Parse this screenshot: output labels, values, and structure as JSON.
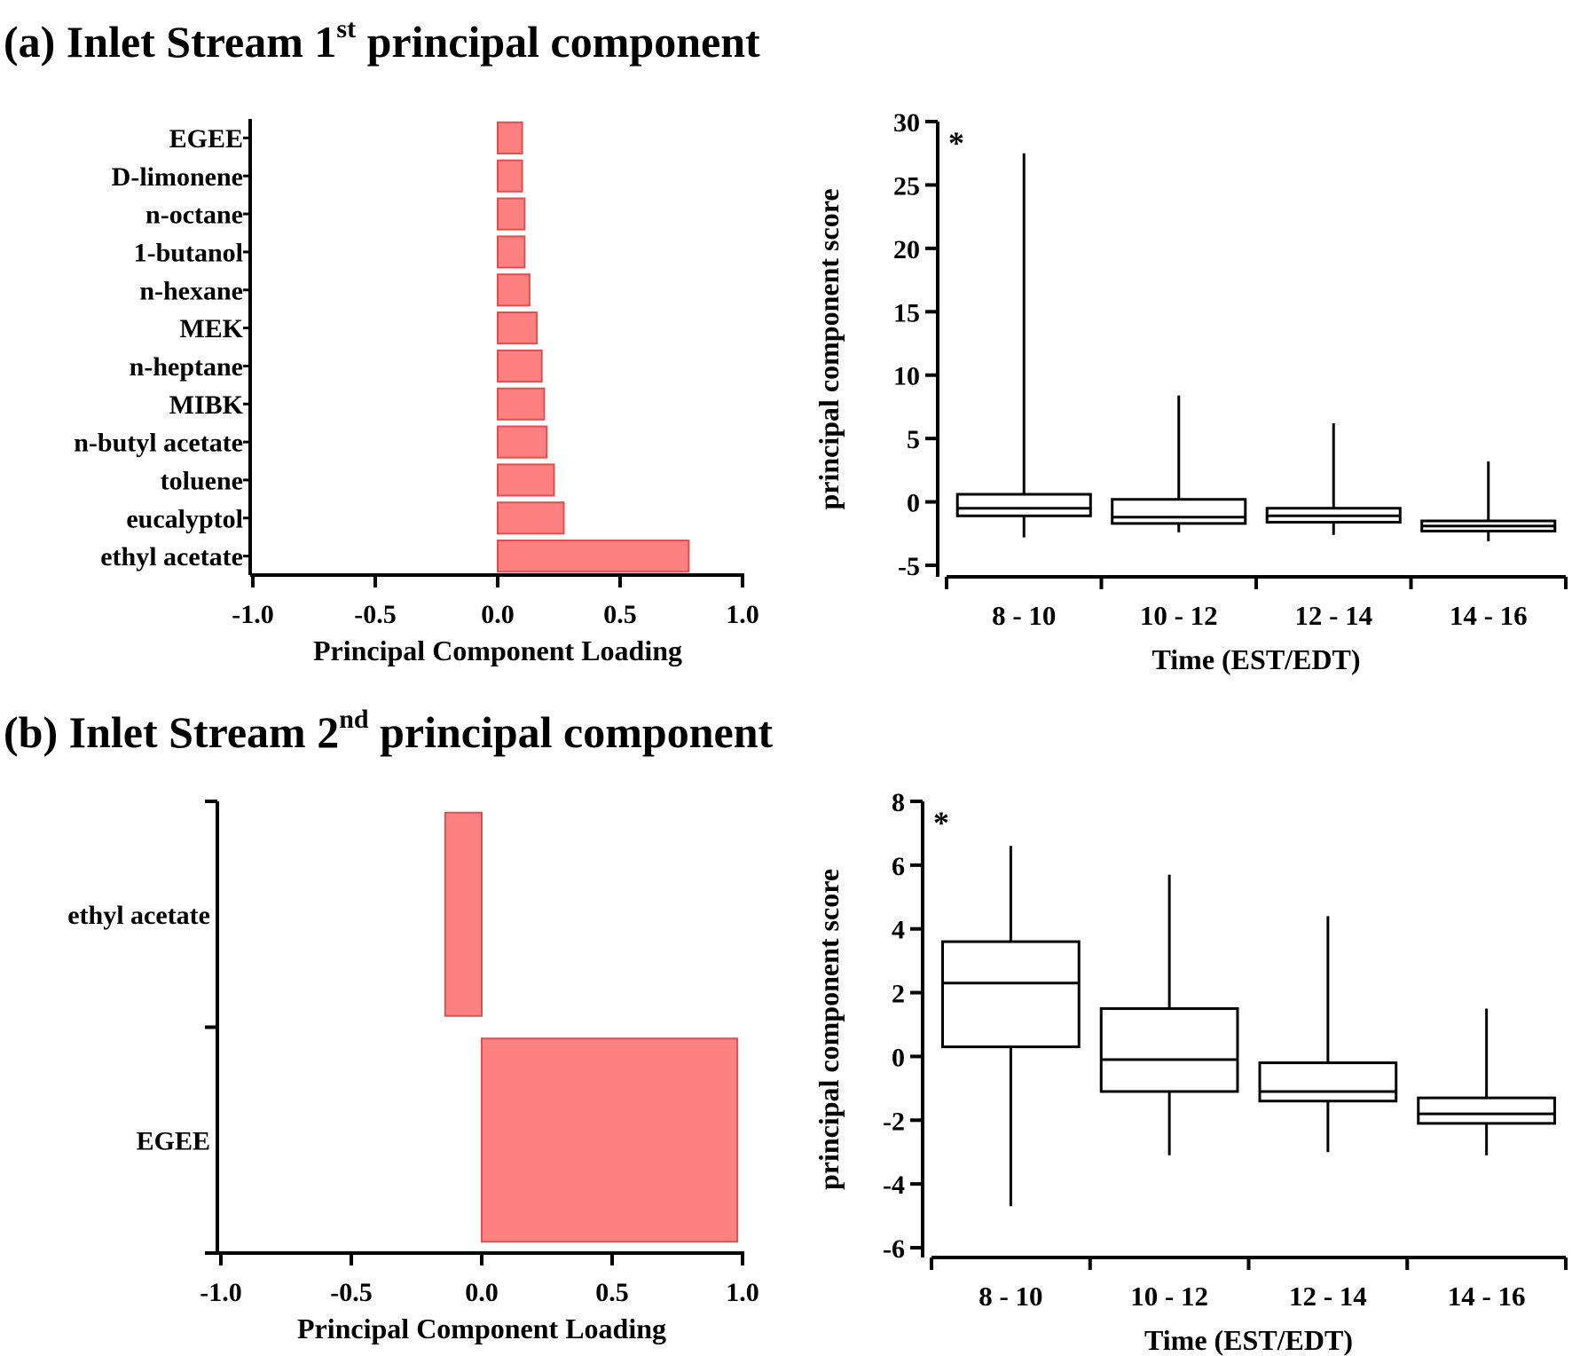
{
  "panels": [
    {
      "title_main": "(a) Inlet Stream 1",
      "title_sup": "st",
      "title_rest": " principal component"
    },
    {
      "title_main": "(b) Inlet Stream 2",
      "title_sup": "nd",
      "title_rest": " principal component"
    }
  ],
  "colors": {
    "bar_fill": "#ff8080",
    "bar_stroke": "#e05050",
    "axis": "#000000"
  },
  "chart_data": [
    {
      "id": "a-loadings",
      "type": "bar",
      "orientation": "horizontal",
      "categories": [
        "EGEE",
        "D-limonene",
        "n-octane",
        "1-butanol",
        "n-hexane",
        "MEK",
        "n-heptane",
        "MIBK",
        "n-butyl acetate",
        "toluene",
        "eucalyptol",
        "ethyl acetate"
      ],
      "values": [
        0.1,
        0.1,
        0.11,
        0.11,
        0.13,
        0.16,
        0.18,
        0.19,
        0.2,
        0.23,
        0.27,
        0.78
      ],
      "xlabel": "Principal Component Loading",
      "xlim": [
        -1.0,
        1.0
      ],
      "xticks": [
        "-1.0",
        "-0.5",
        "0.0",
        "0.5",
        "1.0"
      ]
    },
    {
      "id": "a-scores",
      "type": "box",
      "categories": [
        "8 - 10",
        "10 - 12",
        "12 - 14",
        "14 - 16"
      ],
      "boxes": [
        {
          "min": -2.8,
          "q1": -1.1,
          "median": -0.5,
          "q3": 0.6,
          "max": 27.5
        },
        {
          "min": -2.4,
          "q1": -1.7,
          "median": -1.2,
          "q3": 0.2,
          "max": 8.4
        },
        {
          "min": -2.6,
          "q1": -1.6,
          "median": -1.1,
          "q3": -0.5,
          "max": 6.2
        },
        {
          "min": -3.1,
          "q1": -2.3,
          "median": -1.9,
          "q3": -1.5,
          "max": 3.2
        }
      ],
      "ylabel": "principal component score",
      "xlabel": "Time (EST/EDT)",
      "ylim": [
        -5,
        30
      ],
      "yticks": [
        "-5",
        "0",
        "5",
        "10",
        "15",
        "20",
        "25",
        "30"
      ],
      "annotation": "*"
    },
    {
      "id": "b-loadings",
      "type": "bar",
      "orientation": "horizontal",
      "categories": [
        "ethyl acetate",
        "EGEE"
      ],
      "values": [
        -0.14,
        0.98
      ],
      "xlabel": "Principal Component Loading",
      "xlim": [
        -1.0,
        1.0
      ],
      "xticks": [
        "-1.0",
        "-0.5",
        "0.0",
        "0.5",
        "1.0"
      ]
    },
    {
      "id": "b-scores",
      "type": "box",
      "categories": [
        "8 - 10",
        "10 - 12",
        "12 - 14",
        "14 - 16"
      ],
      "boxes": [
        {
          "min": -4.7,
          "q1": 0.3,
          "median": 2.3,
          "q3": 3.6,
          "max": 6.6
        },
        {
          "min": -3.1,
          "q1": -1.1,
          "median": -0.1,
          "q3": 1.5,
          "max": 5.7
        },
        {
          "min": -3.0,
          "q1": -1.4,
          "median": -1.1,
          "q3": -0.2,
          "max": 4.4
        },
        {
          "min": -3.1,
          "q1": -2.1,
          "median": -1.8,
          "q3": -1.3,
          "max": 1.5
        }
      ],
      "ylabel": "principal component score",
      "xlabel": "Time (EST/EDT)",
      "ylim": [
        -6,
        8
      ],
      "yticks": [
        "-6",
        "-4",
        "-2",
        "0",
        "2",
        "4",
        "6",
        "8"
      ],
      "annotation": "*"
    }
  ]
}
